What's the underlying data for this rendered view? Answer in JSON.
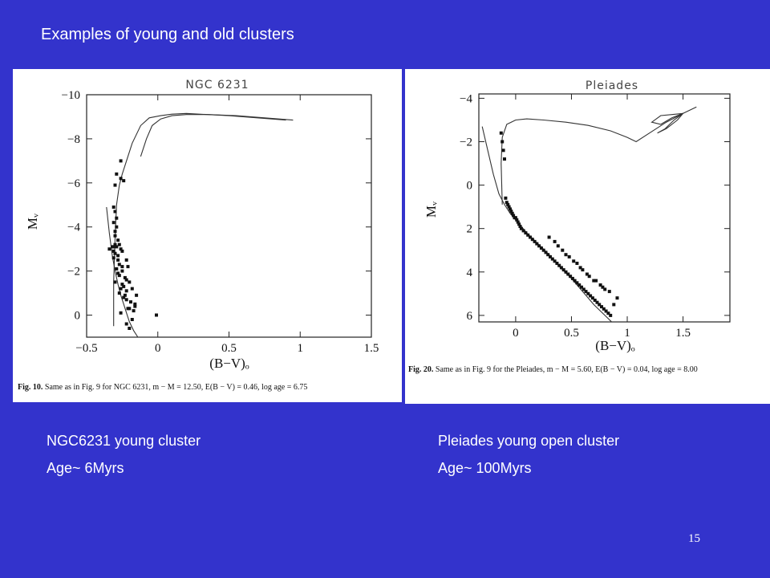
{
  "slide": {
    "title": "Examples of young and old clusters",
    "number": "15",
    "left_caption": {
      "name": "NGC6231 young cluster",
      "age": "Age~ 6Myrs"
    },
    "right_caption": {
      "name": "Pleiades young open cluster",
      "age": "Age~ 100Myrs"
    },
    "colors": {
      "background": "#3333cc",
      "text": "#ffffff",
      "panel": "#ffffff"
    }
  },
  "chart_data": [
    {
      "type": "scatter",
      "title": "NGC 6231",
      "xlabel": "(B−V)ₒ",
      "ylabel": "Mᵥ",
      "xlim": [
        -0.5,
        1.5
      ],
      "ylim": [
        -10,
        1
      ],
      "y_inverted": true,
      "xticks": [
        -0.5,
        0,
        0.5,
        1,
        1.5
      ],
      "xtick_labels": [
        "−0.5",
        "0",
        "0.5",
        "1",
        "1.5"
      ],
      "yticks": [
        -10,
        -8,
        -6,
        -4,
        -2,
        0
      ],
      "ytick_labels": [
        "−10",
        "−8",
        "−6",
        "−4",
        "−2",
        "0"
      ],
      "caption_fig": "Fig. 10.",
      "caption_text": "Same as in Fig. 9 for NGC 6231, m − M = 12.50, E(B − V) = 0.46, log age = 6.75",
      "series": [
        {
          "kind": "points",
          "x": [
            -0.26,
            -0.29,
            -0.26,
            -0.24,
            -0.3,
            -0.31,
            -0.3,
            -0.29,
            -0.31,
            -0.29,
            -0.3,
            -0.3,
            -0.28,
            -0.3,
            -0.31,
            -0.29,
            -0.27,
            -0.26,
            -0.34,
            -0.32,
            -0.31,
            -0.3,
            -0.28,
            -0.31,
            -0.28,
            -0.25,
            -0.27,
            -0.25,
            -0.22,
            -0.29,
            -0.28,
            -0.27,
            -0.25,
            -0.23,
            -0.21,
            -0.22,
            -0.3,
            -0.25,
            -0.24,
            -0.26,
            -0.22,
            -0.27,
            -0.2,
            -0.23,
            -0.24,
            -0.22,
            -0.18,
            -0.19,
            -0.16,
            -0.21,
            -0.17,
            -0.26,
            -0.2,
            -0.15,
            -0.18,
            -0.22,
            -0.2,
            -0.16,
            -0.01
          ],
          "y": [
            -7.0,
            -6.4,
            -6.2,
            -6.1,
            -5.9,
            -4.9,
            -4.7,
            -4.4,
            -4.2,
            -4.0,
            -3.8,
            -3.6,
            -3.4,
            -3.2,
            -3.1,
            -3.1,
            -3.2,
            -3.0,
            -3.0,
            -3.1,
            -2.9,
            -2.8,
            -2.7,
            -2.6,
            -2.5,
            -2.9,
            -2.3,
            -2.2,
            -2.5,
            -2.1,
            -1.9,
            -1.8,
            -2.0,
            -1.7,
            -2.2,
            -1.6,
            -1.5,
            -1.4,
            -1.3,
            -1.2,
            -1.1,
            -1.0,
            -1.5,
            -0.9,
            -0.8,
            -0.7,
            -1.2,
            -0.6,
            -0.5,
            -0.3,
            -0.2,
            -0.1,
            -0.3,
            -0.9,
            0.2,
            0.4,
            0.6,
            -0.4,
            0.0
          ]
        },
        {
          "kind": "line",
          "x": [
            -0.36,
            -0.34,
            -0.32,
            -0.3,
            -0.28,
            -0.26,
            -0.24,
            -0.22,
            -0.2,
            -0.17,
            -0.14,
            -0.11,
            -0.08
          ],
          "y": [
            -4.9,
            -3.7,
            -2.7,
            -2.0,
            -1.4,
            -0.9,
            -0.5,
            -0.1,
            0.3,
            0.7,
            1.0,
            1.3,
            1.6
          ]
        },
        {
          "kind": "line",
          "x": [
            -0.31,
            -0.31,
            -0.3,
            -0.29,
            -0.27,
            -0.25,
            -0.22,
            -0.18,
            -0.12,
            -0.06,
            0.02,
            0.1,
            0.2,
            0.35,
            0.55,
            0.75,
            0.95
          ],
          "y": [
            0.5,
            -1.5,
            -3.5,
            -5.0,
            -5.9,
            -6.4,
            -7.0,
            -7.8,
            -8.6,
            -8.95,
            -9.05,
            -9.12,
            -9.15,
            -9.1,
            -9.05,
            -8.95,
            -8.85
          ]
        },
        {
          "kind": "line",
          "x": [
            -0.12,
            -0.08,
            -0.04,
            0.02,
            0.1,
            0.2,
            0.35,
            0.5,
            0.7,
            0.9
          ],
          "y": [
            -7.2,
            -8.0,
            -8.6,
            -8.9,
            -9.05,
            -9.1,
            -9.1,
            -9.05,
            -8.95,
            -8.85
          ]
        }
      ]
    },
    {
      "type": "scatter",
      "title": "Pleiades",
      "xlabel": "(B−V)ₒ",
      "ylabel": "Mᵥ",
      "xlim": [
        -0.33,
        1.92
      ],
      "ylim": [
        -4.2,
        6.3
      ],
      "y_inverted": true,
      "xticks": [
        0,
        0.5,
        1,
        1.5
      ],
      "xtick_labels": [
        "0",
        "0.5",
        "1",
        "1.5"
      ],
      "yticks": [
        -4,
        -2,
        0,
        2,
        4,
        6
      ],
      "ytick_labels": [
        "−4",
        "−2",
        "0",
        "2",
        "4",
        "6"
      ],
      "caption_fig": "Fig. 20.",
      "caption_text": "Same as in Fig. 9 for the Pleiades, m − M = 5.60, E(B − V) = 0.04, log age = 8.00",
      "series": [
        {
          "kind": "points",
          "x": [
            -0.13,
            -0.12,
            -0.11,
            -0.1,
            -0.09,
            -0.08,
            -0.07,
            -0.06,
            -0.05,
            -0.04,
            -0.03,
            -0.02,
            -0.01,
            0.0,
            0.01,
            0.02,
            0.03,
            0.04,
            0.05,
            0.07,
            0.09,
            0.11,
            0.13,
            0.15,
            0.17,
            0.19,
            0.21,
            0.23,
            0.25,
            0.27,
            0.29,
            0.31,
            0.33,
            0.35,
            0.37,
            0.39,
            0.41,
            0.43,
            0.45,
            0.47,
            0.49,
            0.51,
            0.53,
            0.55,
            0.57,
            0.59,
            0.61,
            0.63,
            0.65,
            0.67,
            0.69,
            0.71,
            0.73,
            0.75,
            0.77,
            0.79,
            0.81,
            0.83,
            0.85,
            0.88,
            0.91,
            0.35,
            0.42,
            0.48,
            0.55,
            0.6,
            0.66,
            0.72,
            0.78,
            0.84,
            0.3,
            0.38,
            0.45,
            0.52,
            0.58,
            0.64,
            0.7,
            0.76,
            0.8
          ],
          "y": [
            -2.4,
            -2.0,
            -1.6,
            -1.2,
            0.6,
            0.8,
            0.9,
            1.0,
            1.1,
            1.2,
            1.3,
            1.4,
            1.5,
            1.5,
            1.6,
            1.7,
            1.8,
            1.9,
            2.0,
            2.1,
            2.2,
            2.3,
            2.4,
            2.5,
            2.6,
            2.7,
            2.8,
            2.9,
            3.0,
            3.1,
            3.2,
            3.3,
            3.4,
            3.5,
            3.6,
            3.7,
            3.8,
            3.9,
            4.0,
            4.1,
            4.2,
            4.3,
            4.4,
            4.5,
            4.6,
            4.7,
            4.8,
            4.9,
            5.0,
            5.1,
            5.2,
            5.3,
            5.4,
            5.5,
            5.6,
            5.7,
            5.8,
            5.9,
            6.0,
            5.5,
            5.2,
            2.6,
            3.0,
            3.3,
            3.6,
            3.9,
            4.2,
            4.4,
            4.7,
            4.9,
            2.4,
            2.8,
            3.2,
            3.5,
            3.8,
            4.1,
            4.4,
            4.6,
            4.8
          ]
        },
        {
          "kind": "line",
          "x": [
            -0.3,
            -0.25,
            -0.2,
            -0.15,
            -0.1,
            -0.05,
            0.0,
            0.1,
            0.2,
            0.3,
            0.4,
            0.5,
            0.6,
            0.7,
            0.8,
            0.9
          ],
          "y": [
            -2.7,
            -1.6,
            -0.5,
            0.4,
            0.9,
            1.3,
            1.6,
            2.2,
            2.7,
            3.2,
            3.8,
            4.3,
            4.9,
            5.5,
            6.0,
            6.5
          ]
        },
        {
          "kind": "line",
          "x": [
            -0.12,
            -0.13,
            -0.12,
            -0.08,
            0.0,
            0.1,
            0.25,
            0.45,
            0.65,
            0.85,
            1.0,
            1.08,
            1.2,
            1.35,
            1.5,
            1.62
          ],
          "y": [
            0.9,
            -1.0,
            -2.2,
            -2.8,
            -3.0,
            -3.05,
            -3.0,
            -2.9,
            -2.75,
            -2.5,
            -2.2,
            -2.0,
            -2.4,
            -2.9,
            -3.3,
            -3.6
          ]
        },
        {
          "kind": "line",
          "x": [
            1.5,
            1.4,
            1.3,
            1.22,
            1.3,
            1.4,
            1.5
          ],
          "y": [
            -3.3,
            -3.1,
            -2.8,
            -2.9,
            -3.2,
            -3.25,
            -3.3
          ]
        },
        {
          "kind": "line",
          "x": [
            1.5,
            1.42,
            1.34,
            1.27,
            1.35,
            1.45,
            1.5
          ],
          "y": [
            -3.3,
            -3.0,
            -2.6,
            -2.4,
            -2.6,
            -3.0,
            -3.3
          ]
        }
      ]
    }
  ]
}
